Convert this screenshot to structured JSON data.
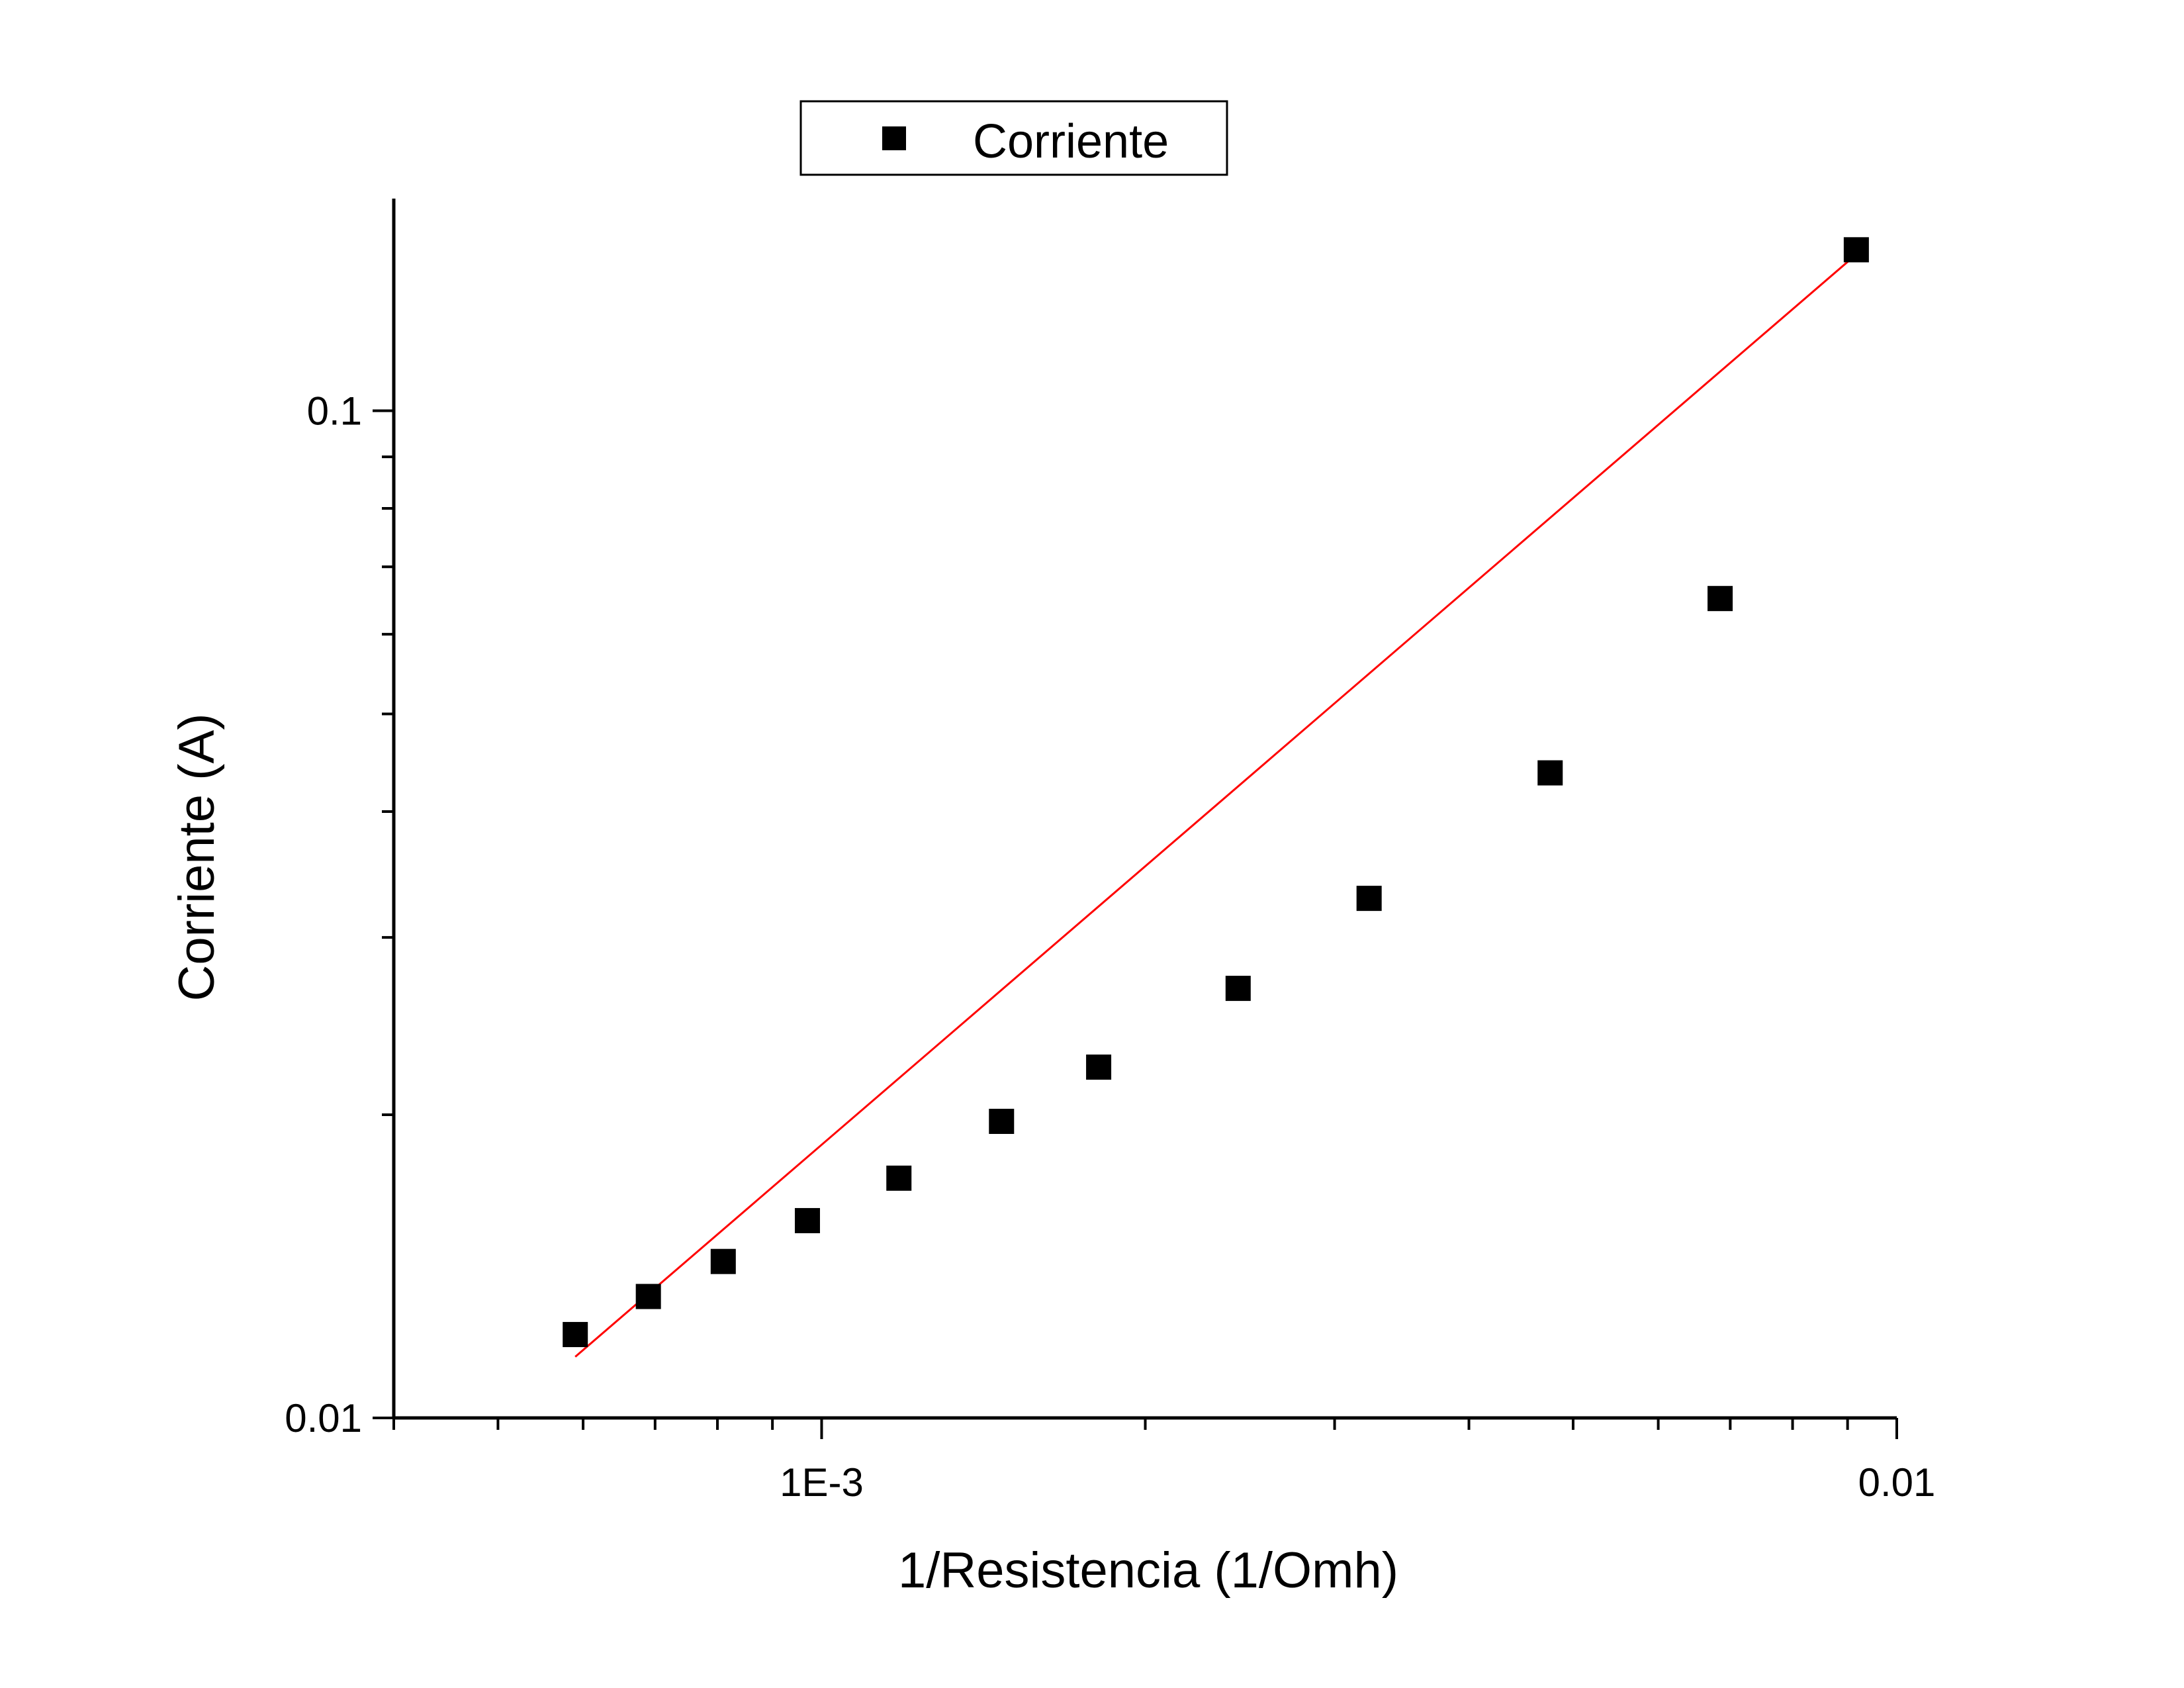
{
  "chart_data": {
    "type": "scatter",
    "xlabel": "1/Resistencia (1/Omh)",
    "ylabel": "Corriente (A)",
    "x_scale": "log",
    "y_scale": "log",
    "xlim": [
      0.0004,
      0.01
    ],
    "ylim": [
      0.01,
      0.16
    ],
    "x_tick_labels": [
      {
        "value": 0.001,
        "label": "1E-3"
      },
      {
        "value": 0.01,
        "label": "0.01"
      }
    ],
    "y_tick_labels": [
      {
        "value": 0.01,
        "label": "0.01"
      },
      {
        "value": 0.1,
        "label": "0.1"
      }
    ],
    "grid": false,
    "legend": {
      "position": "top-center",
      "entries": [
        "Corriente"
      ]
    },
    "series": [
      {
        "name": "Corriente",
        "marker": "square",
        "color": "#000000",
        "x": [
          0.00059,
          0.00069,
          0.00081,
          0.00097,
          0.00118,
          0.00147,
          0.00181,
          0.00244,
          0.00323,
          0.00476,
          0.00685,
          0.00917
        ],
        "y": [
          0.0121,
          0.0132,
          0.0143,
          0.0157,
          0.0173,
          0.0197,
          0.0223,
          0.0267,
          0.0328,
          0.0437,
          0.0651,
          0.1445
        ]
      }
    ],
    "fit_line": {
      "color": "#ff0000",
      "x": [
        0.00059,
        0.00917
      ],
      "y": [
        0.0115,
        0.143
      ]
    }
  }
}
